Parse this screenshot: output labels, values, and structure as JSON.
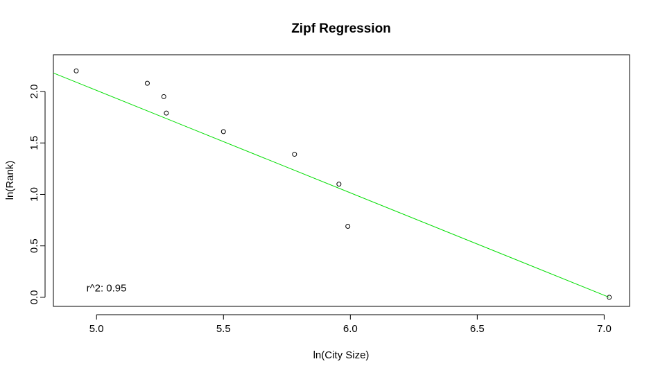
{
  "chart_data": {
    "type": "scatter",
    "title": "Zipf Regression",
    "xlabel": "ln(City Size)",
    "ylabel": "ln(Rank)",
    "xlim": [
      4.83,
      7.1
    ],
    "ylim": [
      -0.088,
      2.357
    ],
    "x_ticks": [
      5.0,
      5.5,
      6.0,
      6.5,
      7.0
    ],
    "x_tick_labels": [
      "5.0",
      "5.5",
      "6.0",
      "6.5",
      "7.0"
    ],
    "y_ticks": [
      0.0,
      0.5,
      1.0,
      1.5,
      2.0
    ],
    "y_tick_labels": [
      "0.0",
      "0.5",
      "1.0",
      "1.5",
      "2.0"
    ],
    "grid": false,
    "points": [
      {
        "x": 4.92,
        "y": 2.2
      },
      {
        "x": 5.2,
        "y": 2.08
      },
      {
        "x": 5.265,
        "y": 1.95
      },
      {
        "x": 5.275,
        "y": 1.79
      },
      {
        "x": 5.5,
        "y": 1.61
      },
      {
        "x": 5.78,
        "y": 1.39
      },
      {
        "x": 5.955,
        "y": 1.1
      },
      {
        "x": 5.99,
        "y": 0.69
      },
      {
        "x": 7.02,
        "y": 0.0
      }
    ],
    "regression_line": {
      "x": [
        4.83,
        7.02
      ],
      "y": [
        2.18,
        0.0
      ],
      "color": "#00dd00"
    },
    "annotation": {
      "text": "r^2: 0.95",
      "x": 4.96,
      "y": 0.09
    }
  }
}
